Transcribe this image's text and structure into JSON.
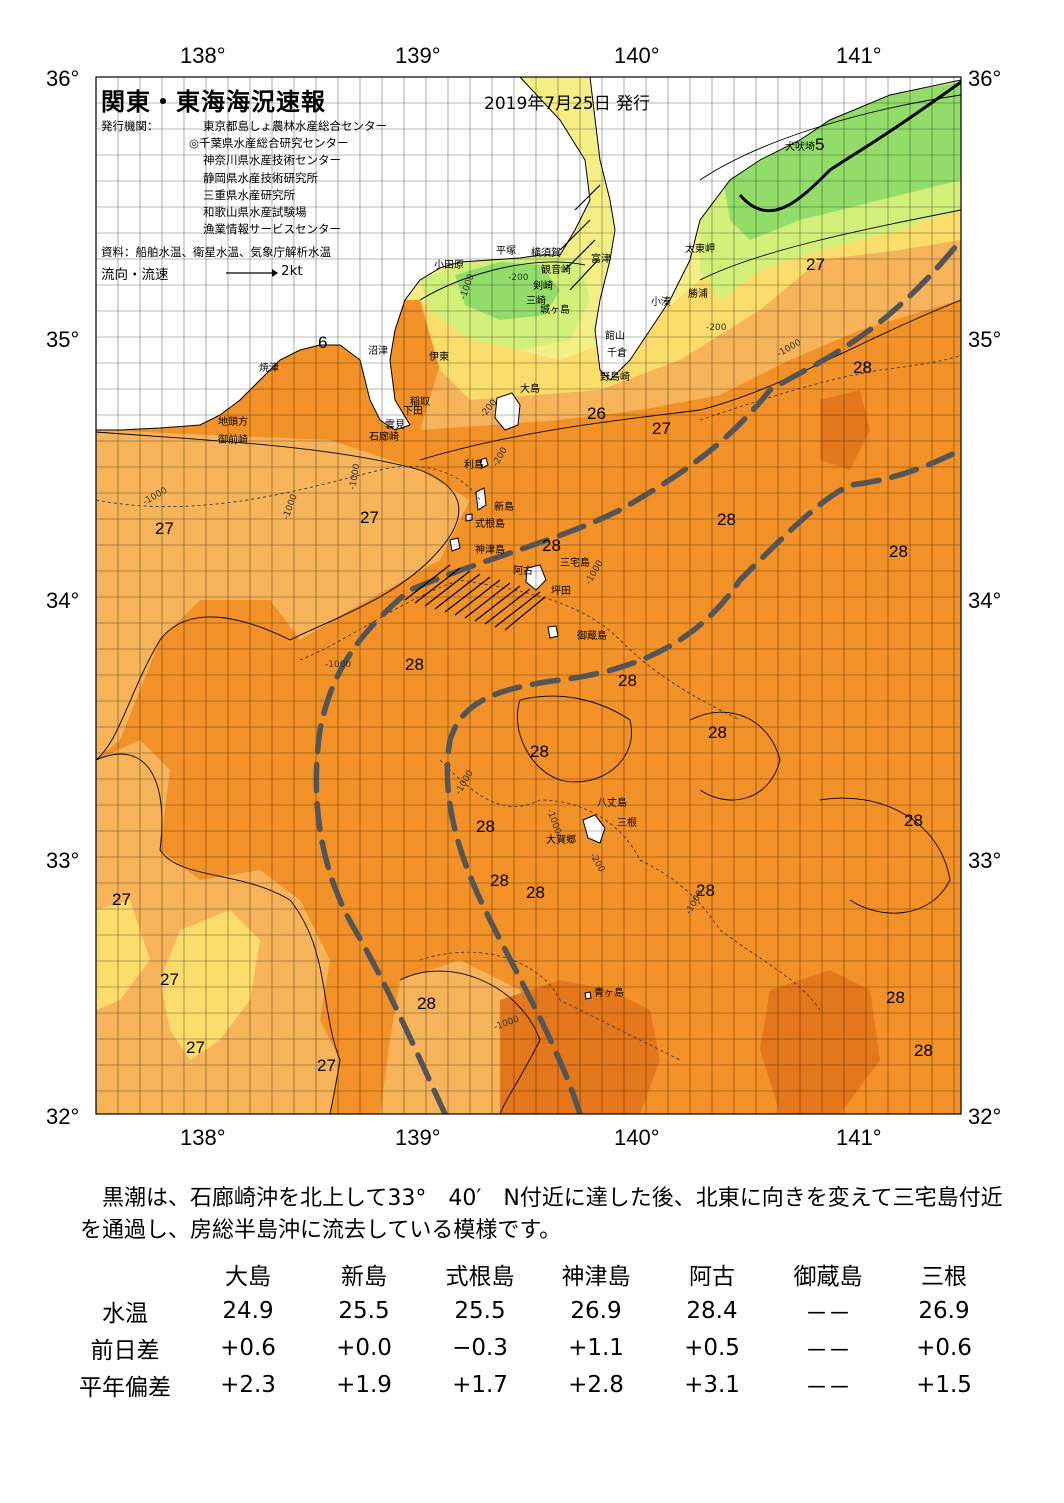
{
  "header": {
    "title": "関東・東海海況速報",
    "date": "2019年7月25日 発行",
    "issuers_label": "発行機関：",
    "issuers": [
      "東京都島しょ農林水産総合センター",
      "◎千葉県水産総合研究センター",
      "神奈川県水産技術センター",
      "静岡県水産技術研究所",
      "三重県水産研究所",
      "和歌山県水産試験場",
      "漁業情報サービスセンター"
    ],
    "source": "資料：船舶水温、衛星水温、気象庁解析水温",
    "flow_label": "流向・流速",
    "flow_speed": "2kt"
  },
  "axes": {
    "lon_top": [
      "138°",
      "139°",
      "140°",
      "141°"
    ],
    "lon_bottom": [
      "138°",
      "139°",
      "140°",
      "141°"
    ],
    "lat_left": [
      "36°",
      "35°",
      "34°",
      "33°",
      "32°"
    ],
    "lat_right": [
      "36°",
      "35°",
      "34°",
      "33°",
      "32°"
    ]
  },
  "place_labels": [
    "犬吠埼",
    "太東岬",
    "勝浦",
    "小湊",
    "館山",
    "千倉",
    "野島崎",
    "富津",
    "横須賀",
    "観音崎",
    "剣崎",
    "城ヶ島",
    "三崎",
    "平塚",
    "小田原",
    "伊東",
    "稲取",
    "下田",
    "石廊崎",
    "雲見",
    "沼津",
    "焼津",
    "地頭方",
    "御前崎",
    "大島",
    "利島",
    "新島",
    "式根島",
    "神津島",
    "三宅島",
    "阿古",
    "坪田",
    "御蔵島",
    "八丈島",
    "三根",
    "大賀郷",
    "青ヶ島"
  ],
  "temperature_labels": [
    "27",
    "27",
    "27",
    "27",
    "27",
    "27",
    "27",
    "27",
    "26",
    "28",
    "28",
    "28",
    "28",
    "28",
    "28",
    "28",
    "28",
    "28",
    "28",
    "28",
    "28",
    "28",
    "28",
    "28",
    "28",
    "6",
    "5"
  ],
  "bathymetry_labels": [
    "-200",
    "-1000",
    "-200",
    "-1000",
    "-200",
    "-200",
    "-1000",
    "-1000",
    "-1000",
    "-1000",
    "-1000",
    "-1000",
    "-1000",
    "-200",
    "-1000",
    "-1000"
  ],
  "summary": "黒潮は、石廊崎沖を北上して33°　40′　N付近に達した後、北東に向きを変えて三宅島付近を通過し、房総半島沖に流去している模様です。",
  "table": {
    "headers": [
      "",
      "大島",
      "新島",
      "式根島",
      "神津島",
      "阿古",
      "御蔵島",
      "三根"
    ],
    "rows": [
      {
        "label": "水温",
        "values": [
          "24.9",
          "25.5",
          "25.5",
          "26.9",
          "28.4",
          "－－",
          "26.9"
        ]
      },
      {
        "label": "前日差",
        "values": [
          "+0.6",
          "+0.0",
          "−0.3",
          "+1.1",
          "+0.5",
          "－－",
          "+0.6"
        ]
      },
      {
        "label": "平年偏差",
        "values": [
          "+2.3",
          "+1.9",
          "+1.7",
          "+2.8",
          "+3.1",
          "－－",
          "+1.5"
        ]
      }
    ]
  },
  "colors": {
    "sst_25": "#f3ef86",
    "sst_26": "#f9dc6a",
    "sst_27": "#f6b35a",
    "sst_28": "#f29127",
    "sst_28_5": "#e4761b",
    "sst_24": "#d2ef7a",
    "sst_23": "#92dd6a",
    "kuroshio_axis": "#555555",
    "land": "#ffffff"
  }
}
